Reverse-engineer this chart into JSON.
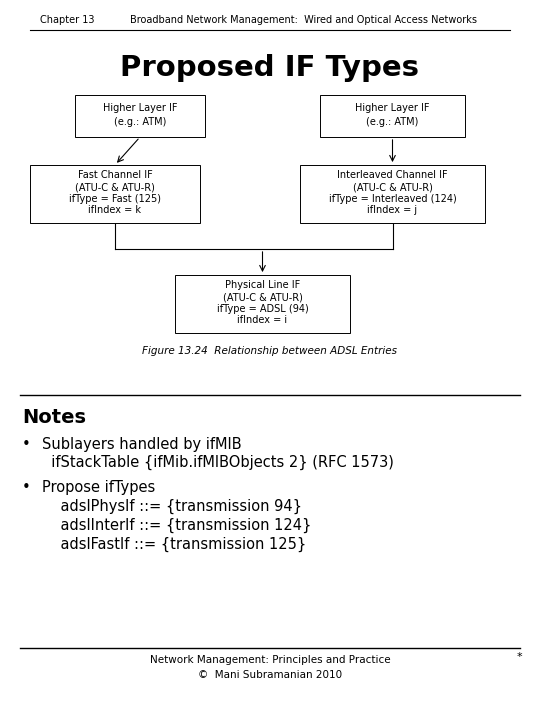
{
  "header_chapter": "Chapter 13",
  "header_title": "Broadband Network Management:  Wired and Optical Access Networks",
  "slide_title": "Proposed IF Types",
  "figure_caption": "Figure 13.24  Relationship between ADSL Entries",
  "box_higher_left": [
    "Higher Layer IF",
    "(e.g.: ATM)"
  ],
  "box_higher_right": [
    "Higher Layer IF",
    "(e.g.: ATM)"
  ],
  "box_fast": [
    "Fast Channel IF",
    "(ATU-C & ATU-R)",
    "ifType = Fast (125)",
    "ifIndex = k"
  ],
  "box_interleaved": [
    "Interleaved Channel IF",
    "(ATU-C & ATU-R)",
    "ifType = Interleaved (124)",
    "ifIndex = j"
  ],
  "box_physical": [
    "Physical Line IF",
    "(ATU-C & ATU-R)",
    "ifType = ADSL (94)",
    "ifIndex = i"
  ],
  "notes_title": "Notes",
  "bullet1_line1": "Sublayers handled by ifMIB",
  "bullet1_line2": "  ifStackTable {ifMib.ifMIBObjects 2} (RFC 1573)",
  "bullet2_line1": "Propose ifTypes",
  "bullet2_line2": "    adslPhysIf ::= {transmission 94}",
  "bullet2_line3": "    adslInterIf ::= {transmission 124}",
  "bullet2_line4": "    adslFastIf ::= {transmission 125}",
  "footer_line1": "Network Management: Principles and Practice",
  "footer_line2": "©  Mani Subramanian 2010",
  "footer_star": "*",
  "bg_color": "#ffffff",
  "text_color": "#000000"
}
